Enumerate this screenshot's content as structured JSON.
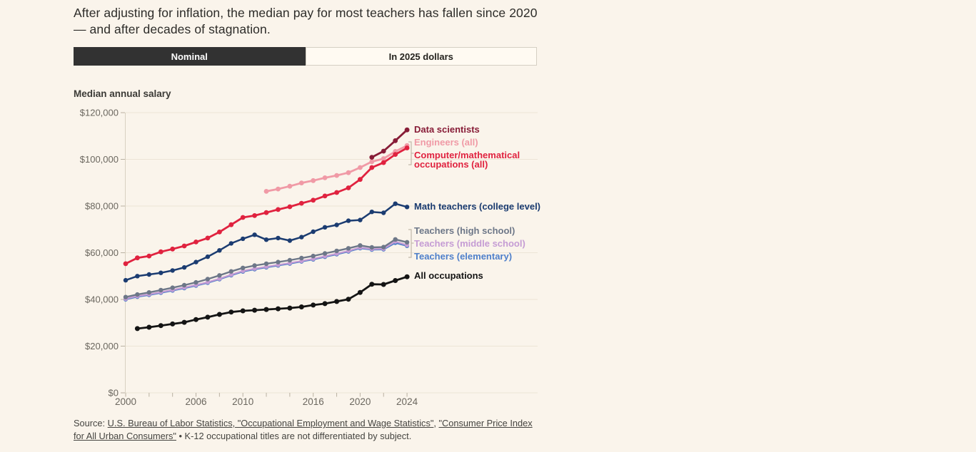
{
  "page": {
    "background": "#faf4eb"
  },
  "headline": {
    "text": "After adjusting for inflation, the median pay for most teachers has fallen since 2020 — and after decades of stagnation."
  },
  "toggle": {
    "options": [
      {
        "id": "nominal",
        "label": "Nominal",
        "selected": true
      },
      {
        "id": "in-2025-dollars",
        "label": "In 2025 dollars",
        "selected": false
      }
    ]
  },
  "chart_data": {
    "type": "line",
    "title": "Median annual salary",
    "x_axis": {
      "min": 2000,
      "max": 2024,
      "minor_tick_step": 2,
      "labeled_ticks": [
        2000,
        2006,
        2010,
        2016,
        2020,
        2024
      ]
    },
    "y_axis": {
      "min": 0,
      "max": 120000,
      "ticks": [
        {
          "value": 0,
          "label": "$0"
        },
        {
          "value": 20000,
          "label": "$20,000"
        },
        {
          "value": 40000,
          "label": "$40,000"
        },
        {
          "value": 60000,
          "label": "$60,000"
        },
        {
          "value": 80000,
          "label": "$80,000"
        },
        {
          "value": 100000,
          "label": "$100,000"
        },
        {
          "value": 120000,
          "label": "$120,000"
        }
      ]
    },
    "grid": true,
    "legend_position": "right-of-line-ends",
    "series": [
      {
        "key": "computer-math",
        "name": "Computer/mathematical occupations (all)",
        "color": "#e0223f",
        "start_year": 2000,
        "values": [
          55300,
          57800,
          58600,
          60400,
          61600,
          62900,
          64600,
          66300,
          68900,
          72000,
          75100,
          75900,
          77200,
          78500,
          79700,
          81200,
          82500,
          84300,
          85800,
          87800,
          91400,
          96500,
          98600,
          102100,
          104900
        ]
      },
      {
        "key": "engineers",
        "name": "Engineers (all)",
        "color": "#f09aa6",
        "start_year": 2012,
        "values": [
          86300,
          87300,
          88500,
          89900,
          90900,
          92100,
          93100,
          94300,
          96500,
          99000,
          100300,
          103400,
          105900
        ]
      },
      {
        "key": "data-scientists",
        "name": "Data scientists",
        "color": "#871c37",
        "start_year": 2021,
        "values": [
          100900,
          103500,
          108000,
          112600
        ]
      },
      {
        "key": "math-college",
        "name": "Math teachers (college level)",
        "color": "#1b3c71",
        "start_year": 2000,
        "values": [
          48200,
          50000,
          50700,
          51400,
          52400,
          53700,
          56000,
          58300,
          61000,
          64000,
          66000,
          67700,
          65600,
          66300,
          65200,
          66700,
          69000,
          70900,
          71900,
          73700,
          74000,
          77500,
          77100,
          81000,
          79600
        ]
      },
      {
        "key": "high-school",
        "name": "Teachers (high school)",
        "color": "#6d7788",
        "start_year": 2000,
        "values": [
          41000,
          42100,
          43000,
          44000,
          45000,
          46100,
          47300,
          48700,
          50300,
          52000,
          53500,
          54500,
          55300,
          56000,
          56800,
          57700,
          58600,
          59700,
          60800,
          61900,
          63100,
          62300,
          62400,
          65700,
          64500
        ]
      },
      {
        "key": "middle-school",
        "name": "Teachers (middle school)",
        "color": "#c59cd4",
        "start_year": 2000,
        "values": [
          40300,
          41400,
          42200,
          43100,
          44100,
          45100,
          46200,
          47400,
          48900,
          50600,
          52200,
          53200,
          54000,
          54800,
          55600,
          56500,
          57400,
          58500,
          59600,
          60800,
          62200,
          61600,
          61700,
          64800,
          63300
        ]
      },
      {
        "key": "elementary",
        "name": "Teachers (elementary)",
        "color": "#4e7fca",
        "start_year": 2000,
        "values": [
          40000,
          41100,
          41900,
          42800,
          43800,
          44800,
          45900,
          47100,
          48600,
          50300,
          51900,
          52900,
          53700,
          54500,
          55300,
          56200,
          57100,
          58200,
          59300,
          60500,
          61900,
          61300,
          61400,
          64200,
          62900
        ]
      },
      {
        "key": "all-occupations",
        "name": "All occupations",
        "color": "#141414",
        "start_year": 2001,
        "values": [
          27500,
          28100,
          28800,
          29500,
          30200,
          31400,
          32400,
          33600,
          34600,
          35100,
          35400,
          35700,
          36000,
          36300,
          36800,
          37600,
          38200,
          39100,
          40100,
          43000,
          46500,
          46400,
          48100,
          49700
        ]
      }
    ]
  },
  "source": {
    "parts": [
      {
        "text": "Source: ",
        "link": false
      },
      {
        "text": "U.S. Bureau of Labor Statistics, \"Occupational Employment and Wage Statistics\"",
        "link": true
      },
      {
        "text": ", ",
        "link": false
      },
      {
        "text": "\"Consumer Price Index for All Urban Consumers\"",
        "link": true
      },
      {
        "text": " • K-12 occupational titles are not differentiated by subject.",
        "link": false
      }
    ]
  }
}
